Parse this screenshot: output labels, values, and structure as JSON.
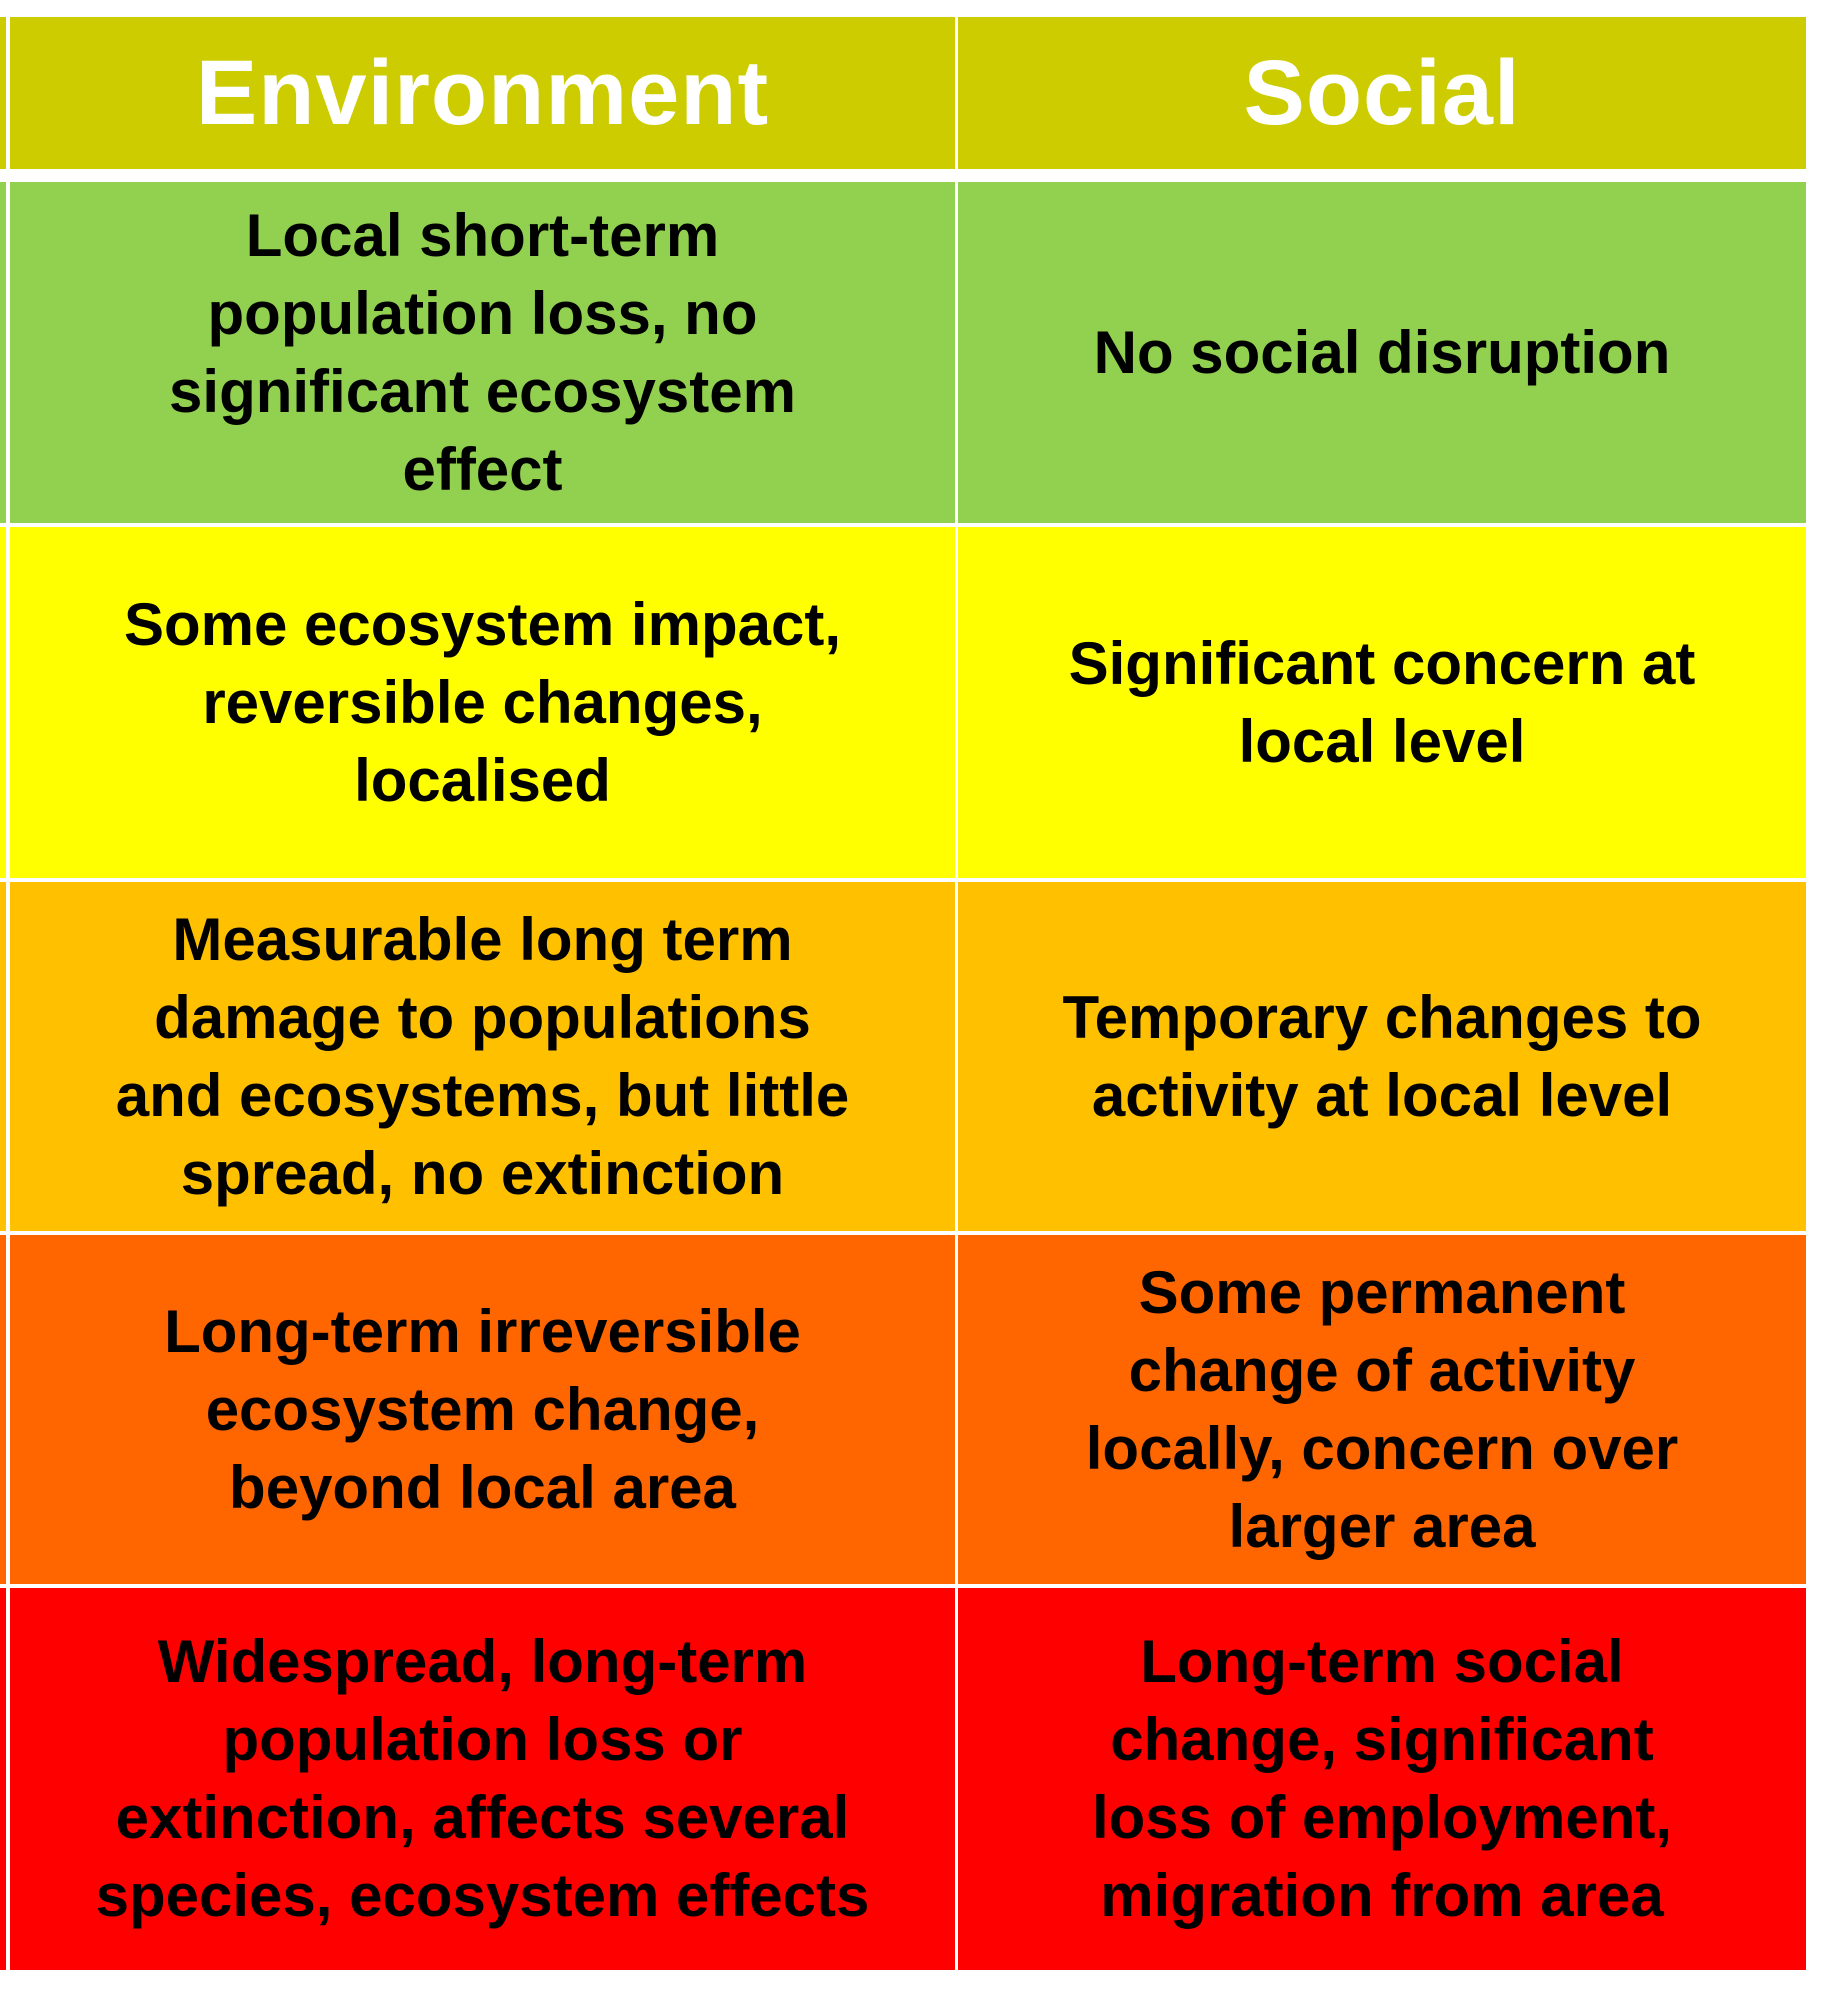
{
  "header": {
    "environment": "Environment",
    "social": "Social",
    "color": "#cccc00"
  },
  "rows": [
    {
      "color": "#92d050",
      "environment": "Local short-term\npopulation loss, no\nsignificant ecosystem\neffect",
      "social": "No social disruption"
    },
    {
      "color": "#ffff00",
      "environment": "Some ecosystem impact,\nreversible changes,\nlocalised",
      "social": "Significant concern at\nlocal level"
    },
    {
      "color": "#ffc000",
      "environment": "Measurable long term\ndamage to populations\nand ecosystems, but little\nspread, no extinction",
      "social": "Temporary changes to\nactivity at local level"
    },
    {
      "color": "#ff6600",
      "environment": "Long-term irreversible\necosystem change,\nbeyond local area",
      "social": "Some permanent\nchange of activity\nlocally, concern over\nlarger area"
    },
    {
      "color": "#ff0000",
      "environment": "Widespread, long-term\npopulation loss or\nextinction, affects several\nspecies, ecosystem effects",
      "social": "Long-term social\nchange, significant\nloss of employment,\nmigration from area"
    }
  ]
}
